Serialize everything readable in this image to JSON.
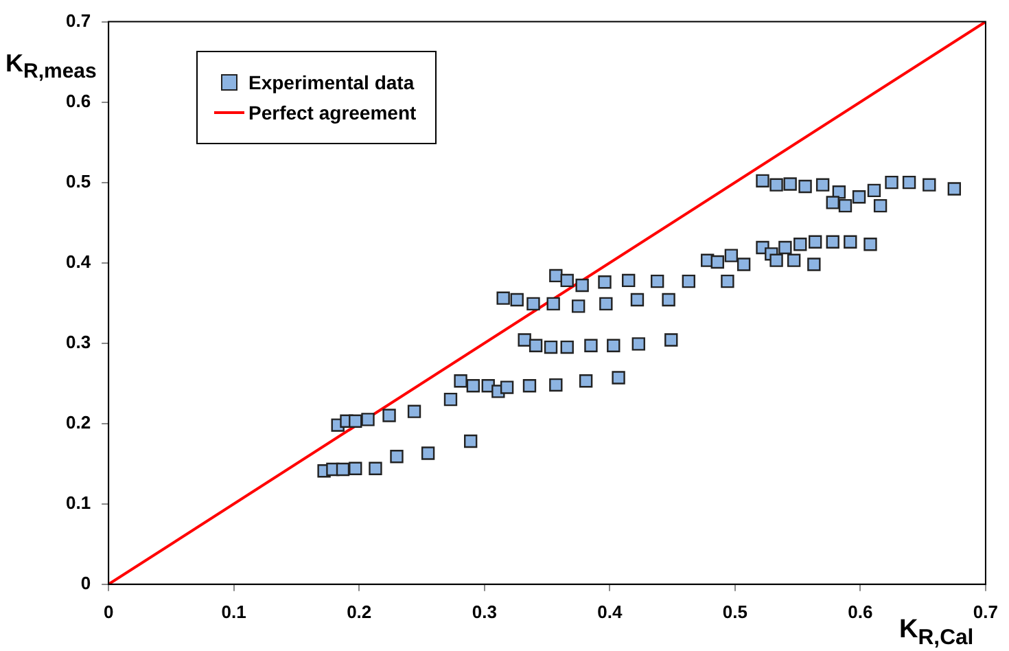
{
  "chart_data": {
    "type": "scatter",
    "xlabel": "K$_{R,Cal}$",
    "ylabel": "K$_{R,meas}$",
    "xlim": [
      0,
      0.7
    ],
    "ylim": [
      0,
      0.7
    ],
    "xticks": [
      0,
      0.1,
      0.2,
      0.3,
      0.4,
      0.5,
      0.6,
      0.7
    ],
    "yticks": [
      0,
      0.1,
      0.2,
      0.3,
      0.4,
      0.5,
      0.6,
      0.7
    ],
    "grid": false,
    "legend": "top left",
    "marker": "square",
    "series": [
      {
        "name": "Experimental data",
        "color": "#8db4e2",
        "type": "scatter",
        "x": [
          0.172,
          0.179,
          0.187,
          0.197,
          0.213,
          0.23,
          0.255,
          0.289,
          0.183,
          0.19,
          0.197,
          0.207,
          0.224,
          0.244,
          0.273,
          0.281,
          0.291,
          0.303,
          0.311,
          0.318,
          0.336,
          0.357,
          0.381,
          0.407,
          0.332,
          0.341,
          0.353,
          0.366,
          0.385,
          0.403,
          0.423,
          0.449,
          0.315,
          0.326,
          0.339,
          0.355,
          0.375,
          0.397,
          0.422,
          0.447,
          0.357,
          0.366,
          0.378,
          0.396,
          0.415,
          0.438,
          0.463,
          0.494,
          0.478,
          0.486,
          0.497,
          0.507,
          0.522,
          0.529,
          0.533,
          0.54,
          0.547,
          0.552,
          0.563,
          0.564,
          0.578,
          0.592,
          0.608,
          0.522,
          0.533,
          0.544,
          0.556,
          0.57,
          0.583,
          0.578,
          0.588,
          0.599,
          0.611,
          0.616,
          0.625,
          0.639,
          0.655,
          0.675
        ],
        "values": [
          0.141,
          0.143,
          0.143,
          0.144,
          0.144,
          0.159,
          0.163,
          0.178,
          0.198,
          0.203,
          0.203,
          0.205,
          0.21,
          0.215,
          0.23,
          0.253,
          0.247,
          0.247,
          0.24,
          0.245,
          0.247,
          0.248,
          0.253,
          0.257,
          0.304,
          0.297,
          0.295,
          0.295,
          0.297,
          0.297,
          0.299,
          0.304,
          0.356,
          0.354,
          0.349,
          0.349,
          0.346,
          0.349,
          0.354,
          0.354,
          0.384,
          0.378,
          0.372,
          0.376,
          0.378,
          0.377,
          0.377,
          0.377,
          0.403,
          0.401,
          0.409,
          0.398,
          0.419,
          0.411,
          0.403,
          0.419,
          0.403,
          0.423,
          0.398,
          0.426,
          0.426,
          0.426,
          0.423,
          0.502,
          0.497,
          0.498,
          0.495,
          0.497,
          0.488,
          0.475,
          0.471,
          0.482,
          0.49,
          0.471,
          0.5,
          0.5,
          0.497,
          0.492
        ]
      },
      {
        "name": "Perfect agreement",
        "color": "#ff0000",
        "type": "line",
        "marker": "none",
        "x": [
          0,
          0.7
        ],
        "values": [
          0,
          0.7
        ]
      }
    ]
  }
}
